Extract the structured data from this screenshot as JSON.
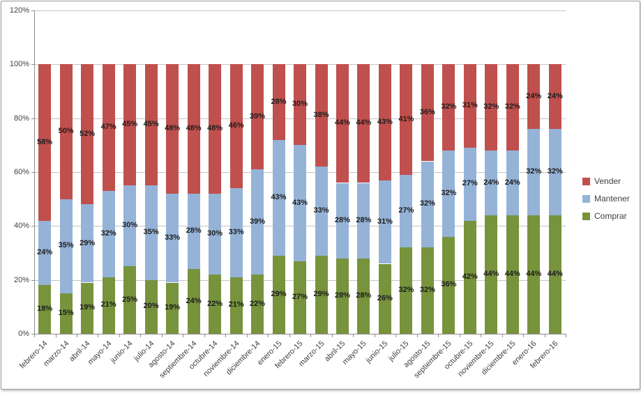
{
  "chart_data": {
    "type": "bar",
    "subtype": "stacked-100-column",
    "title": "",
    "xlabel": "",
    "ylabel": "",
    "grid": true,
    "label_format": "percent",
    "categories": [
      "febrero-14",
      "marzo-14",
      "abril-14",
      "mayo-14",
      "junio-14",
      "julio-14",
      "agosto-14",
      "septiembre-14",
      "octubre-14",
      "noviembre-14",
      "diciembre-14",
      "enero-15",
      "febrero-15",
      "marzo-15",
      "abril-15",
      "mayo-15",
      "junio-15",
      "julio-15",
      "agosto-15",
      "septiembre-15",
      "octubre-15",
      "noviembre-15",
      "diciembre-15",
      "enero-16",
      "febrero-16"
    ],
    "series": [
      {
        "name": "Comprar",
        "color": "#77933C",
        "values": [
          18,
          15,
          19,
          21,
          25,
          20,
          19,
          24,
          22,
          21,
          22,
          29,
          27,
          29,
          28,
          28,
          26,
          32,
          32,
          36,
          42,
          44,
          44,
          44,
          44
        ]
      },
      {
        "name": "Mantener",
        "color": "#95B3D7",
        "values": [
          24,
          35,
          29,
          32,
          30,
          35,
          33,
          28,
          30,
          33,
          39,
          43,
          43,
          33,
          28,
          28,
          31,
          27,
          32,
          32,
          27,
          24,
          24,
          32,
          32
        ]
      },
      {
        "name": "Vender",
        "color": "#C0504D",
        "values": [
          58,
          50,
          52,
          47,
          45,
          45,
          48,
          48,
          48,
          46,
          39,
          28,
          30,
          38,
          44,
          44,
          43,
          41,
          36,
          32,
          31,
          32,
          32,
          24,
          24
        ]
      }
    ],
    "y_axis": {
      "min": 0,
      "max": 120,
      "tick_step": 20,
      "tick_labels": [
        "0%",
        "20%",
        "40%",
        "60%",
        "80%",
        "100%",
        "120%"
      ]
    },
    "legend": {
      "position": "right",
      "entries": [
        {
          "label": "Vender",
          "color": "#C0504D"
        },
        {
          "label": "Mantener",
          "color": "#95B3D7"
        },
        {
          "label": "Comprar",
          "color": "#77933C"
        }
      ]
    }
  },
  "colors": {
    "gridline": "#C3C3C3",
    "axis": "#8C8C8C",
    "tick": "#8C8C8C",
    "axis_text": "#3F3F3F",
    "data_label": "#1C1C1C",
    "frame_border": "#9B9B9B",
    "background": "#FFFFFF"
  }
}
